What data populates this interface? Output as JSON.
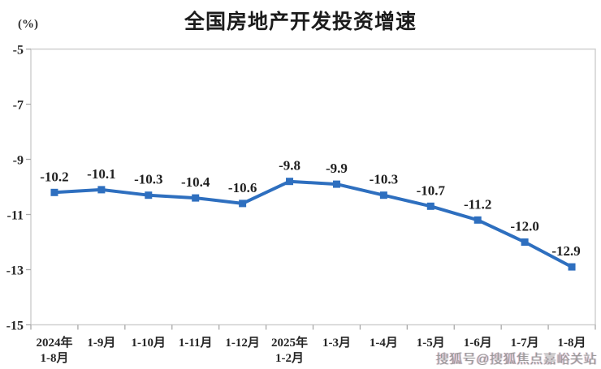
{
  "chart_data": {
    "type": "line",
    "title": "全国房地产开发投资增速",
    "unit": "(%)",
    "categories": [
      "2024年\n1-8月",
      "1-9月",
      "1-10月",
      "1-11月",
      "1-12月",
      "2025年\n1-2月",
      "1-3月",
      "1-4月",
      "1-5月",
      "1-6月",
      "1-7月",
      "1-8月"
    ],
    "values": [
      -10.2,
      -10.1,
      -10.3,
      -10.4,
      -10.6,
      -9.8,
      -9.9,
      -10.3,
      -10.7,
      -11.2,
      -12.0,
      -12.9
    ],
    "data_labels": [
      "-10.2",
      "-10.1",
      "-10.3",
      "-10.4",
      "-10.6",
      "-9.8",
      "-9.9",
      "-10.3",
      "-10.7",
      "-11.2",
      "-12.0",
      "-12.9"
    ],
    "xlabel": "",
    "ylabel": "(%)",
    "ylim": [
      -15,
      -5
    ],
    "yticks": [
      -5,
      -7,
      -9,
      -11,
      -13,
      -15
    ],
    "grid": false,
    "legend_position": "none",
    "line_color": "#2e6fbf",
    "marker": "square",
    "label_color": "#1f1f1f",
    "axis_text_color": "#262626",
    "plot_border_color": "#d0d0d0",
    "tick_color": "#a9a9a9"
  },
  "watermark": {
    "text": "搜狐号@搜狐焦点嘉峪关站"
  }
}
